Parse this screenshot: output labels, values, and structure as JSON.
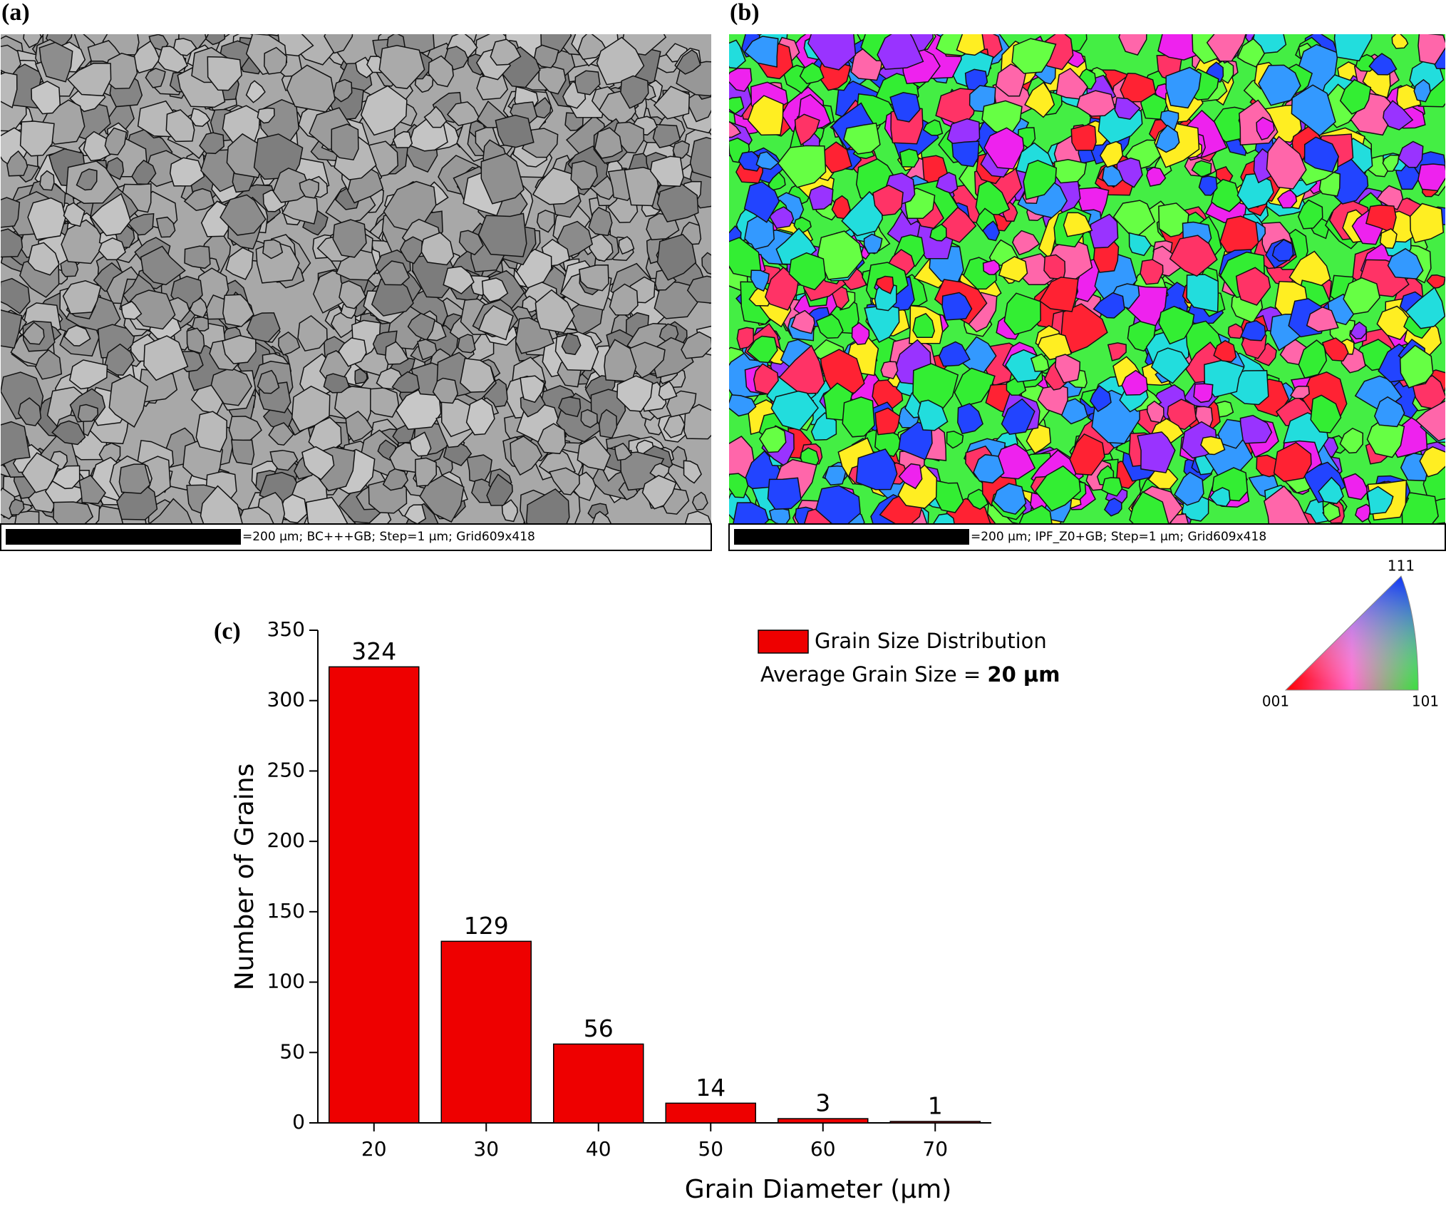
{
  "panels": [
    {
      "label": "(a)",
      "scale_text": "=200 µm; BC+++GB; Step=1 µm; Grid609x418"
    },
    {
      "label": "(b)",
      "scale_text": "=200 µm; IPF_Z0+GB; Step=1 µm; Grid609x418"
    }
  ],
  "ipf_key": {
    "top": "111",
    "left": "001",
    "right": "101"
  },
  "chart_data": {
    "type": "bar",
    "panel_label": "(c)",
    "x_label": "Grain Diameter (µm)",
    "y_label": "Number of Grains",
    "x": [
      20,
      30,
      40,
      50,
      60,
      70
    ],
    "series": [
      {
        "name": "Grain Size Distribution",
        "color": "#ee0000",
        "values": [
          324,
          129,
          56,
          14,
          3,
          1
        ]
      }
    ],
    "annotation": "Average Grain Size = ",
    "annotation_value": "20 µm",
    "xlim": [
      15,
      75
    ],
    "xticks": [
      20,
      30,
      40,
      50,
      60,
      70
    ],
    "ylim": [
      0,
      350
    ],
    "yticks": [
      0,
      50,
      100,
      150,
      200,
      250,
      300,
      350
    ],
    "legend": "top-right"
  }
}
